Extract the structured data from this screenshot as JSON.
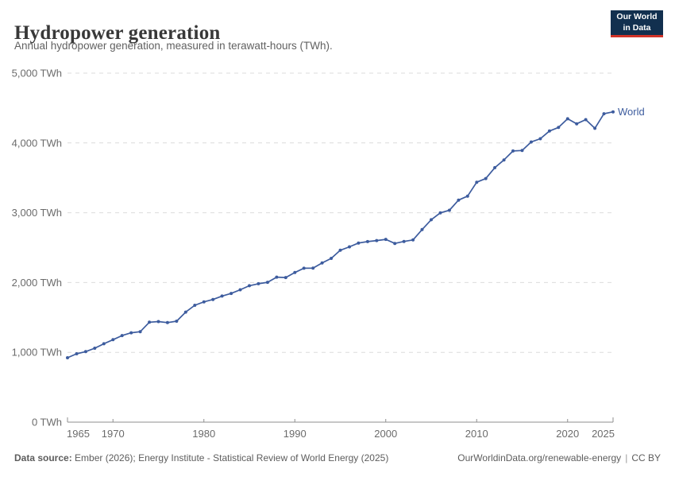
{
  "header": {
    "title": "Hydropower generation",
    "subtitle": "Annual hydropower generation, measured in terawatt-hours (TWh).",
    "logo_line1": "Our World",
    "logo_line2": "in Data"
  },
  "footer": {
    "source_label": "Data source:",
    "source_text": " Ember (2026); Energy Institute - Statistical Review of World Energy (2025)",
    "link": "OurWorldinData.org/renewable-energy",
    "separator": "|",
    "license": "CC BY"
  },
  "colors": {
    "series_blue": "#3d5c9e",
    "grid": "#dcdcdc",
    "axis": "#8f8f8f",
    "tick_text": "#6b6b6b",
    "logo_navy": "#12304f",
    "logo_red": "#d13328"
  },
  "chart_data": {
    "type": "line",
    "title": "Hydropower generation",
    "subtitle": "Annual hydropower generation, measured in terawatt-hours (TWh).",
    "unit": "TWh",
    "xlim": [
      1965,
      2025
    ],
    "ylim": [
      0,
      5000
    ],
    "grid": "horizontal-dashed",
    "legend_position": "end-of-line-label",
    "x_ticks": [
      1965,
      1970,
      1980,
      1990,
      2000,
      2010,
      2020,
      2025
    ],
    "y_ticks": [
      0,
      1000,
      2000,
      3000,
      4000,
      5000
    ],
    "y_tick_labels": [
      "0 TWh",
      "1,000 TWh",
      "2,000 TWh",
      "3,000 TWh",
      "4,000 TWh",
      "5,000 TWh"
    ],
    "series": [
      {
        "name": "World",
        "color": "#3d5c9e",
        "x": [
          1965,
          1966,
          1967,
          1968,
          1969,
          1970,
          1971,
          1972,
          1973,
          1974,
          1975,
          1976,
          1977,
          1978,
          1979,
          1980,
          1981,
          1982,
          1983,
          1984,
          1985,
          1986,
          1987,
          1988,
          1989,
          1990,
          1991,
          1992,
          1993,
          1994,
          1995,
          1996,
          1997,
          1998,
          1999,
          2000,
          2001,
          2002,
          2003,
          2004,
          2005,
          2006,
          2007,
          2008,
          2009,
          2010,
          2011,
          2012,
          2013,
          2014,
          2015,
          2016,
          2017,
          2018,
          2019,
          2020,
          2021,
          2022,
          2023,
          2024,
          2025
        ],
        "values": [
          923,
          979,
          1010,
          1059,
          1123,
          1181,
          1240,
          1280,
          1296,
          1432,
          1441,
          1426,
          1446,
          1576,
          1674,
          1723,
          1757,
          1806,
          1844,
          1896,
          1954,
          1983,
          2003,
          2077,
          2072,
          2144,
          2205,
          2206,
          2280,
          2346,
          2462,
          2511,
          2566,
          2587,
          2601,
          2619,
          2560,
          2589,
          2610,
          2759,
          2900,
          2999,
          3035,
          3181,
          3238,
          3437,
          3490,
          3646,
          3756,
          3885,
          3892,
          4014,
          4060,
          4171,
          4222,
          4346,
          4274,
          4334,
          4210,
          4418,
          4445
        ]
      }
    ]
  }
}
